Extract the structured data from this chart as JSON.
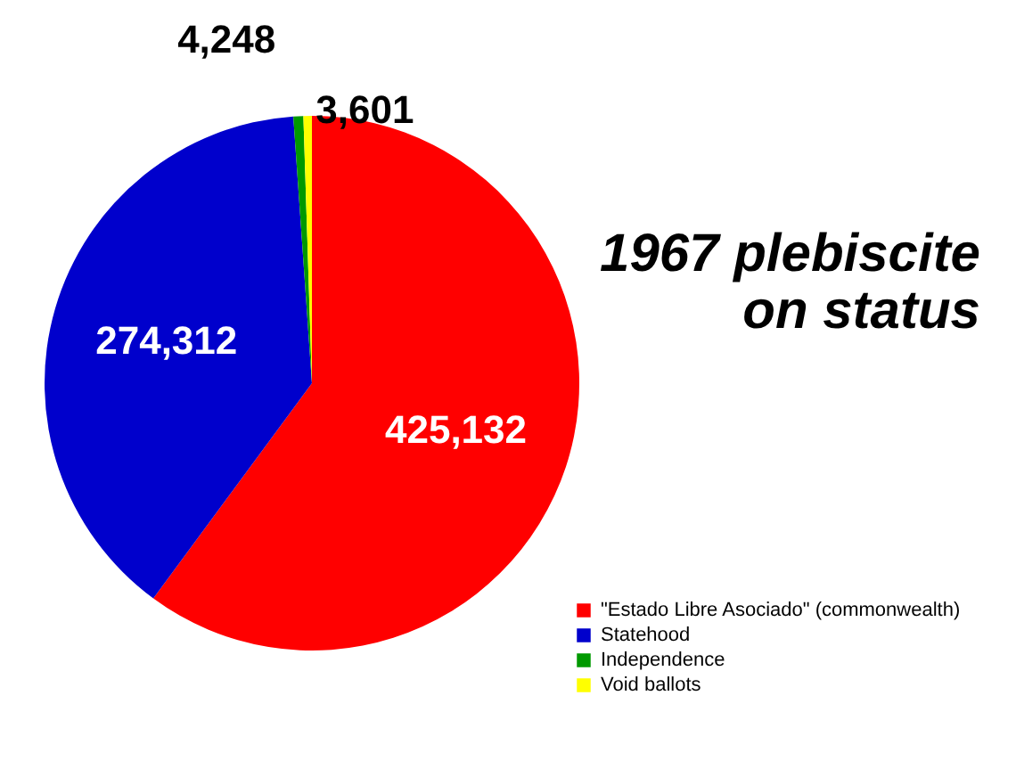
{
  "chart_data": {
    "type": "pie",
    "title": "1967 plebiscite on status",
    "categories": [
      "\"Estado Libre Asociado\" (commonwealth)",
      "Statehood",
      "Independence",
      "Void ballots"
    ],
    "values": [
      425132,
      274312,
      4248,
      3601
    ],
    "colors": [
      "#ff0000",
      "#0000cc",
      "#009900",
      "#ffff00"
    ],
    "value_labels": [
      "425,132",
      "274,312",
      "4,248",
      "3,601"
    ],
    "legend": "bottom right"
  }
}
